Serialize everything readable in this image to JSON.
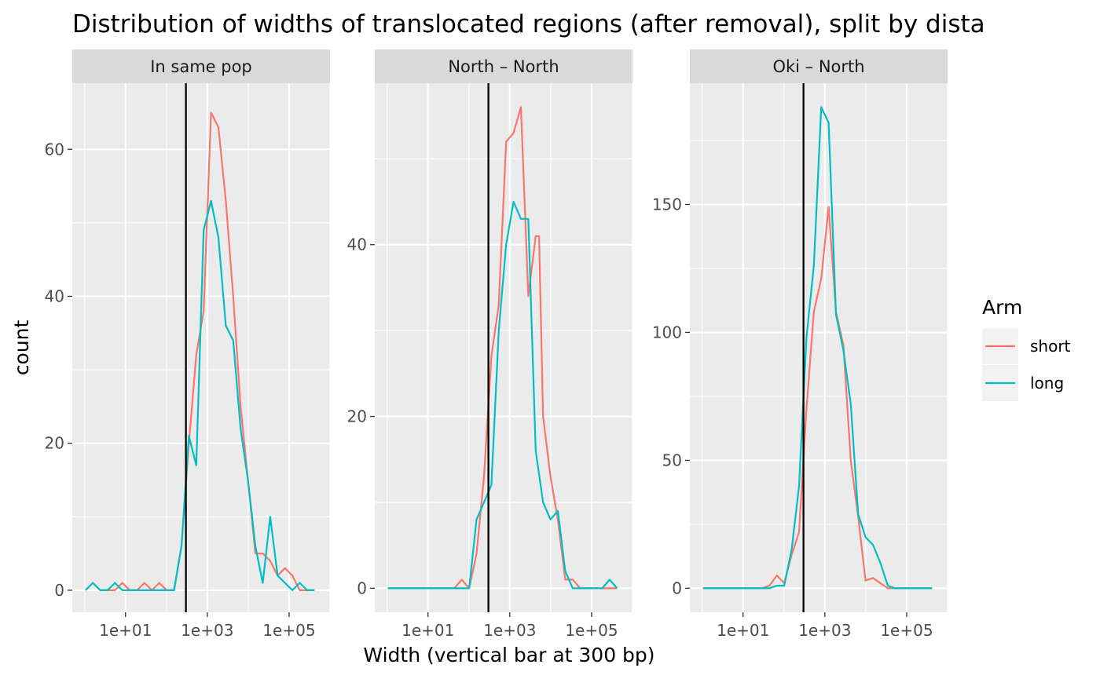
{
  "chart_data": {
    "type": "line",
    "title": "Distribution of widths of translocated regions (after removal), split by dista",
    "xlabel": "Width (vertical bar at 300 bp)",
    "ylabel": "count",
    "x_scale": "log10",
    "x_tick_labels": [
      "1e+01",
      "1e+03",
      "1e+05"
    ],
    "x_tick_values": [
      10,
      1000,
      100000
    ],
    "xlim": [
      0.5,
      1000000
    ],
    "vline_x": 300,
    "legend": {
      "title": "Arm",
      "placement": "right",
      "entries": [
        {
          "name": "short",
          "color": "#F8766D"
        },
        {
          "name": "long",
          "color": "#00BFC4"
        }
      ]
    },
    "panels": [
      {
        "strip": "In same pop",
        "ylim": [
          -3,
          69
        ],
        "y_ticks": [
          0,
          20,
          40,
          60
        ],
        "y_tick_labels": [
          "0",
          "20",
          "40",
          "60"
        ],
        "series": [
          {
            "name": "short",
            "color": "#F8766D",
            "x": [
              1.05,
              1.59,
              2.4,
              3.64,
              5.52,
              8.37,
              12.7,
              19.2,
              29.1,
              44.2,
              67,
              101.6,
              154,
              233.5,
              354,
              536.8,
              813.9,
              1234,
              1871,
              2837,
              4301,
              6521,
              9886,
              14989,
              22725,
              34454,
              52236,
              79196,
              120070,
              182040,
              275991,
              418433
            ],
            "y": [
              0,
              1,
              0,
              0,
              0,
              1,
              0,
              0,
              1,
              0,
              1,
              0,
              0,
              6,
              20,
              32,
              38,
              65,
              63,
              53,
              40,
              25,
              15,
              5,
              5,
              4,
              2,
              3,
              2,
              0,
              0,
              0
            ]
          },
          {
            "name": "long",
            "color": "#00BFC4",
            "x": [
              1.05,
              1.59,
              2.4,
              3.64,
              5.52,
              8.37,
              12.7,
              19.2,
              29.1,
              44.2,
              67,
              101.6,
              154,
              233.5,
              354,
              536.8,
              813.9,
              1234,
              1871,
              2837,
              4301,
              6521,
              9886,
              14989,
              22725,
              34454,
              52236,
              79196,
              120070,
              182040,
              275991,
              418433
            ],
            "y": [
              0,
              1,
              0,
              0,
              1,
              0,
              0,
              0,
              0,
              0,
              0,
              0,
              0,
              6,
              21,
              17,
              49,
              53,
              48,
              36,
              34,
              22,
              15,
              6,
              1,
              10,
              2,
              1,
              0,
              1,
              0,
              0
            ]
          }
        ]
      },
      {
        "strip": "North – North",
        "ylim": [
          -2.8,
          58.8
        ],
        "y_ticks": [
          0,
          20,
          40
        ],
        "y_tick_labels": [
          "0",
          "20",
          "40"
        ],
        "series": [
          {
            "name": "short",
            "color": "#F8766D",
            "x": [
              1.05,
              1.59,
              2.4,
              3.64,
              5.52,
              8.37,
              12.7,
              19.2,
              29.1,
              44.2,
              67,
              101.6,
              154,
              233.5,
              354,
              536.8,
              813.9,
              1234,
              1871,
              2837,
              4301,
              5200,
              6521,
              9886,
              14989,
              22725,
              34454,
              52236,
              79196,
              120070,
              182040,
              275991,
              418433
            ],
            "y": [
              0,
              0,
              0,
              0,
              0,
              0,
              0,
              0,
              0,
              0,
              1,
              0,
              4,
              13,
              27,
              33,
              52,
              53,
              56,
              34,
              41,
              41,
              20,
              13,
              8,
              1,
              1,
              0,
              0,
              0,
              0,
              0,
              0
            ]
          },
          {
            "name": "long",
            "color": "#00BFC4",
            "x": [
              1.05,
              1.59,
              2.4,
              3.64,
              5.52,
              8.37,
              12.7,
              19.2,
              29.1,
              44.2,
              67,
              101.6,
              154,
              233.5,
              354,
              536.8,
              813.9,
              1234,
              1871,
              2837,
              4301,
              6521,
              9886,
              14989,
              22725,
              34454,
              52236,
              79196,
              120070,
              182040,
              275991,
              418433
            ],
            "y": [
              0,
              0,
              0,
              0,
              0,
              0,
              0,
              0,
              0,
              0,
              0,
              0,
              8,
              10,
              12,
              30,
              40,
              45,
              43,
              43,
              16,
              10,
              8,
              9,
              2,
              0,
              0,
              0,
              0,
              0,
              1,
              0
            ]
          }
        ]
      },
      {
        "strip": "Oki – North",
        "ylim": [
          -9.4,
          197.4
        ],
        "y_ticks": [
          0,
          50,
          100,
          150
        ],
        "y_tick_labels": [
          "0",
          "50",
          "100",
          "150"
        ],
        "series": [
          {
            "name": "short",
            "color": "#F8766D",
            "x": [
              1.05,
              1.59,
              2.4,
              3.64,
              5.52,
              8.37,
              12.7,
              19.2,
              29.1,
              44.2,
              67,
              101.6,
              154,
              233.5,
              354,
              536.8,
              813.9,
              1234,
              1871,
              2837,
              4301,
              6521,
              9886,
              14989,
              22725,
              34454,
              52236,
              79196,
              120070,
              182040,
              275991,
              418433
            ],
            "y": [
              0,
              0,
              0,
              0,
              0,
              0,
              0,
              0,
              0,
              1,
              5,
              2,
              13,
              22,
              70,
              108,
              121,
              149,
              108,
              95,
              50,
              28,
              3,
              4,
              2,
              0,
              0,
              0,
              0,
              0,
              0,
              0
            ]
          },
          {
            "name": "long",
            "color": "#00BFC4",
            "x": [
              1.05,
              1.59,
              2.4,
              3.64,
              5.52,
              8.37,
              12.7,
              19.2,
              29.1,
              44.2,
              67,
              101.6,
              154,
              233.5,
              354,
              536.8,
              813.9,
              1234,
              1871,
              2837,
              4301,
              6521,
              9886,
              14989,
              22725,
              34454,
              52236,
              79196,
              120070,
              182040,
              275991,
              418433
            ],
            "y": [
              0,
              0,
              0,
              0,
              0,
              0,
              0,
              0,
              0,
              0,
              1,
              1,
              15,
              40,
              98,
              126,
              188,
              182,
              107,
              93,
              72,
              29,
              20,
              17,
              10,
              1,
              0,
              0,
              0,
              0,
              0,
              0
            ]
          }
        ]
      }
    ]
  }
}
